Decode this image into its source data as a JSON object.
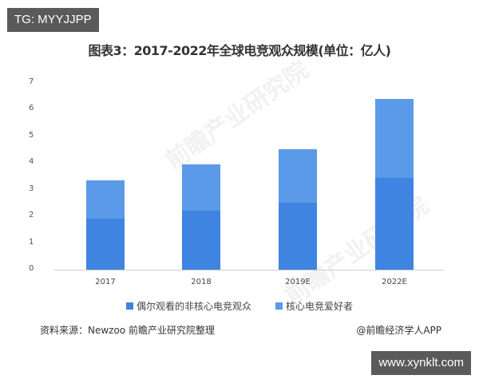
{
  "watermark_tags": {
    "top_left": "TG: MYYJJPP",
    "bottom_right": "www.xynklt.com"
  },
  "title": "图表3：2017-2022年全球电竞观众规模(单位：亿人)",
  "footer": {
    "source": "资料来源：Newzoo 前瞻产业研究院整理",
    "credit": "@前瞻经济学人APP"
  },
  "background_watermark": "前瞻产业研究院",
  "colors": {
    "casual": "#3f84e0",
    "core": "#5b9ae8",
    "axis": "#d0d0d0"
  },
  "chart_data": {
    "type": "bar",
    "stacked": true,
    "title": "图表3：2017-2022年全球电竞观众规模(单位：亿人)",
    "xlabel": "",
    "ylabel": "亿人",
    "ylim": [
      0,
      7
    ],
    "yticks": [
      0,
      1,
      2,
      3,
      4,
      5,
      6,
      7
    ],
    "grid": false,
    "legend_position": "bottom",
    "categories": [
      "2017",
      "2018",
      "2019E",
      "2022E"
    ],
    "series": [
      {
        "name": "偶尔观看的非核心电竞观众",
        "values": [
          1.92,
          2.22,
          2.51,
          3.44
        ],
        "color": "#3f84e0"
      },
      {
        "name": "核心电竞爱好者",
        "values": [
          1.43,
          1.73,
          2.01,
          2.95
        ],
        "color": "#5b9ae8"
      }
    ],
    "totals": [
      3.35,
      3.95,
      4.52,
      6.39
    ]
  }
}
